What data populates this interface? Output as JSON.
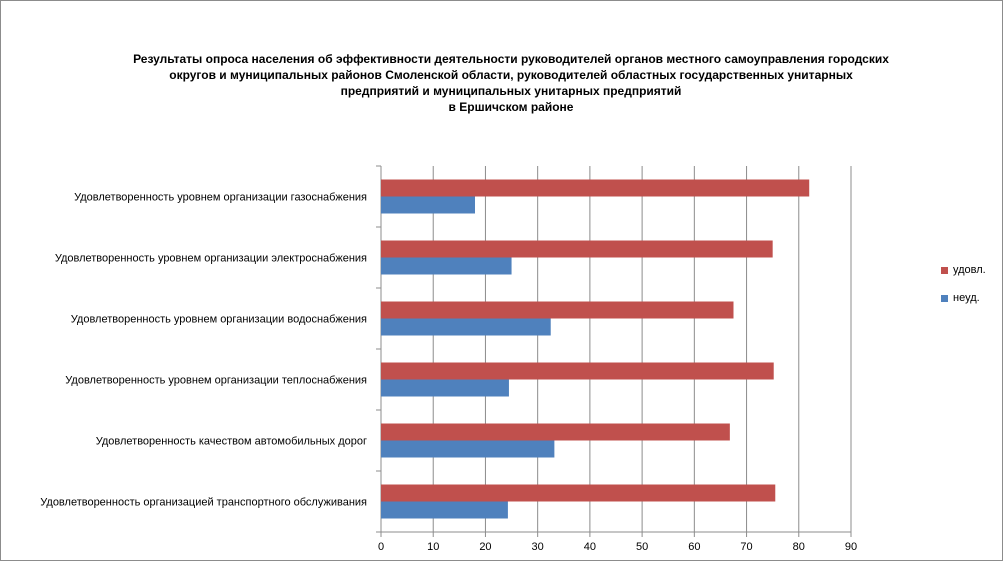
{
  "colors": {
    "udovl": "#c0504d",
    "neud": "#4f81bd",
    "grid": "#8c8c8c",
    "axis": "#8c8c8c"
  },
  "chart_data": {
    "type": "bar",
    "orientation": "horizontal",
    "title_lines": [
      "Результаты опроса населения об эффективности деятельности руководителей органов местного самоуправления городских",
      "округов и муниципальных районов Смоленской области, руководителей областных государственных унитарных",
      "предприятий и муниципальных унитарных предприятий",
      "в Ершичском районе"
    ],
    "categories": [
      "Удовлетворенность  уровнем  организации газоснабжения",
      "Удовлетворенность  уровнем организации электроснабжения",
      "Удовлетворенность  уровнем  организации водоснабжения",
      "Удовлетворенность  уровнем  организации теплоснабжения",
      "Удовлетворенность  качеством  автомобильных дорог",
      "Удовлетворенность  организацией  транспортного обслуживания"
    ],
    "series": [
      {
        "name": "удовл.",
        "values": [
          82,
          75,
          67.5,
          75.2,
          66.8,
          75.5
        ]
      },
      {
        "name": "неуд.",
        "values": [
          18,
          25,
          32.5,
          24.5,
          33.2,
          24.3
        ]
      }
    ],
    "xlim": [
      0,
      90
    ],
    "x_ticks": [
      "0",
      "10",
      "20",
      "30",
      "40",
      "50",
      "60",
      "70",
      "80",
      "90"
    ],
    "grid": true,
    "legend_position": "right",
    "legend": [
      {
        "label": "удовл.",
        "series": 0
      },
      {
        "label": "неуд.",
        "series": 1
      }
    ]
  }
}
